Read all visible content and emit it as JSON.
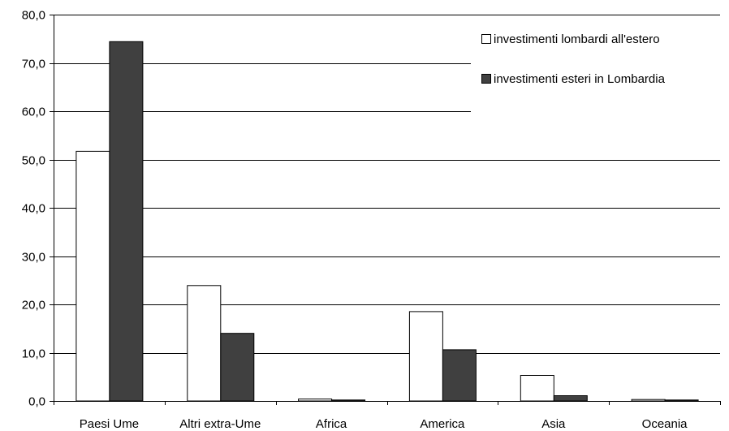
{
  "chart_data": {
    "type": "bar",
    "title": "",
    "xlabel": "",
    "ylabel": "",
    "categories": [
      "Paesi Ume",
      "Altri extra-Ume",
      "Africa",
      "America",
      "Asia",
      "Oceania"
    ],
    "series": [
      {
        "name": "investimenti lombardi all'estero",
        "color": "#ffffff",
        "values": [
          51.7,
          23.9,
          0.4,
          18.5,
          5.3,
          0.3
        ]
      },
      {
        "name": "investimenti esteri in Lombardia",
        "color": "#404040",
        "values": [
          74.4,
          14.0,
          0.2,
          10.6,
          1.1,
          0.2
        ]
      }
    ],
    "ylim": [
      0,
      80
    ],
    "yticks": [
      0,
      10,
      20,
      30,
      40,
      50,
      60,
      70,
      80
    ],
    "ytick_labels": [
      "0,0",
      "10,0",
      "20,0",
      "30,0",
      "40,0",
      "50,0",
      "60,0",
      "70,0",
      "80,0"
    ],
    "grid": true,
    "legend_position": "top-right"
  }
}
